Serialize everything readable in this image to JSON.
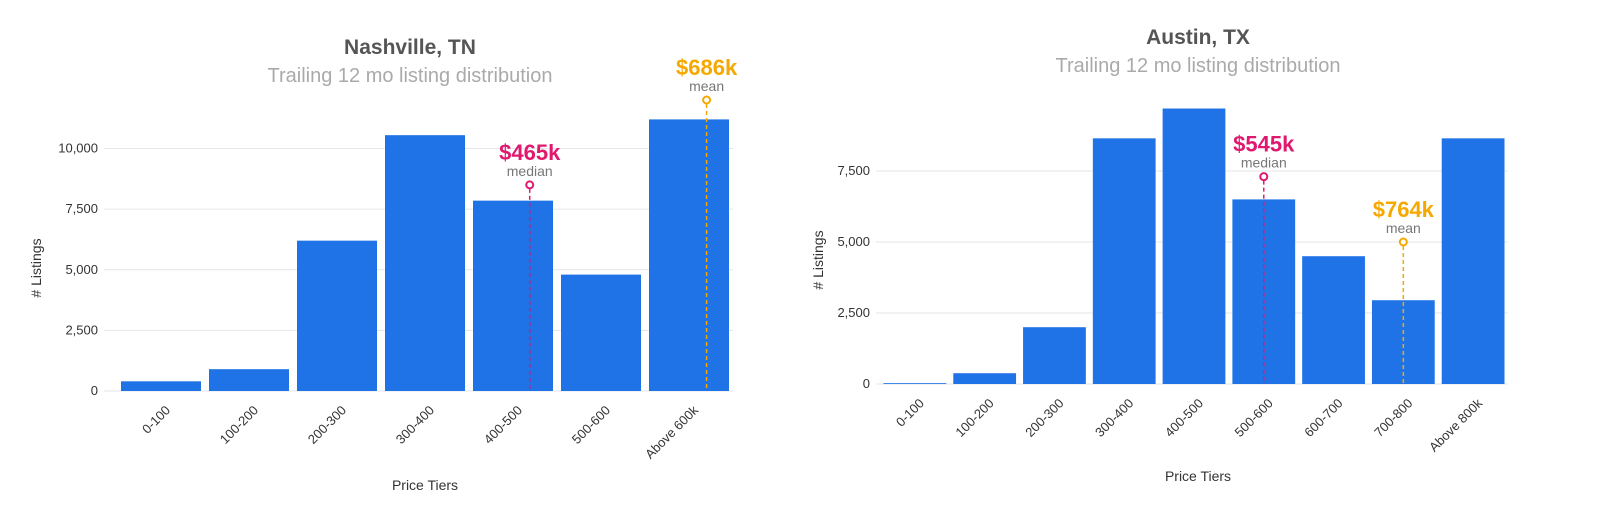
{
  "colors": {
    "bar": "#1f73e6",
    "grid": "#e4e6eb",
    "median": "#e0196f",
    "mean": "#f5a800"
  },
  "chart_data": [
    {
      "type": "bar",
      "title": "Nashville, TN",
      "subtitle": "Trailing 12 mo listing distribution",
      "xlabel": "Price Tiers",
      "ylabel": "# Listings",
      "categories": [
        "0-100",
        "100-200",
        "200-300",
        "300-400",
        "400-500",
        "500-600",
        "Above 600k"
      ],
      "values": [
        400,
        900,
        6200,
        10550,
        7850,
        4800,
        11200
      ],
      "ylim": [
        0,
        12000
      ],
      "yticks": [
        0,
        2500,
        5000,
        7500,
        10000
      ],
      "ytick_labels": [
        "0",
        "2,500",
        "5,000",
        "7,500",
        "10,000"
      ],
      "grid": true,
      "markers": [
        {
          "kind": "median",
          "value_label": "$465k",
          "label": "median",
          "category_index": 4,
          "category_fraction": 0.69,
          "y": 8500
        },
        {
          "kind": "mean",
          "value_label": "$686k",
          "label": "mean",
          "category_index": 6,
          "category_fraction": 0.7,
          "y": 12000
        }
      ]
    },
    {
      "type": "bar",
      "title": "Austin, TX",
      "subtitle": "Trailing 12 mo listing distribution",
      "xlabel": "Price Tiers",
      "ylabel": "# Listings",
      "categories": [
        "0-100",
        "100-200",
        "200-300",
        "300-400",
        "400-500",
        "500-600",
        "600-700",
        "700-800",
        "Above 800k"
      ],
      "values": [
        30,
        380,
        2000,
        8650,
        9700,
        6500,
        4500,
        2950,
        8650
      ],
      "ylim": [
        0,
        10000
      ],
      "yticks": [
        0,
        2500,
        5000,
        7500
      ],
      "ytick_labels": [
        "0",
        "2,500",
        "5,000",
        "7,500"
      ],
      "grid": true,
      "markers": [
        {
          "kind": "median",
          "value_label": "$545k",
          "label": "median",
          "category_index": 5,
          "category_fraction": 0.5,
          "y": 7300
        },
        {
          "kind": "mean",
          "value_label": "$764k",
          "label": "mean",
          "category_index": 7,
          "category_fraction": 0.5,
          "y": 5000
        }
      ]
    }
  ]
}
